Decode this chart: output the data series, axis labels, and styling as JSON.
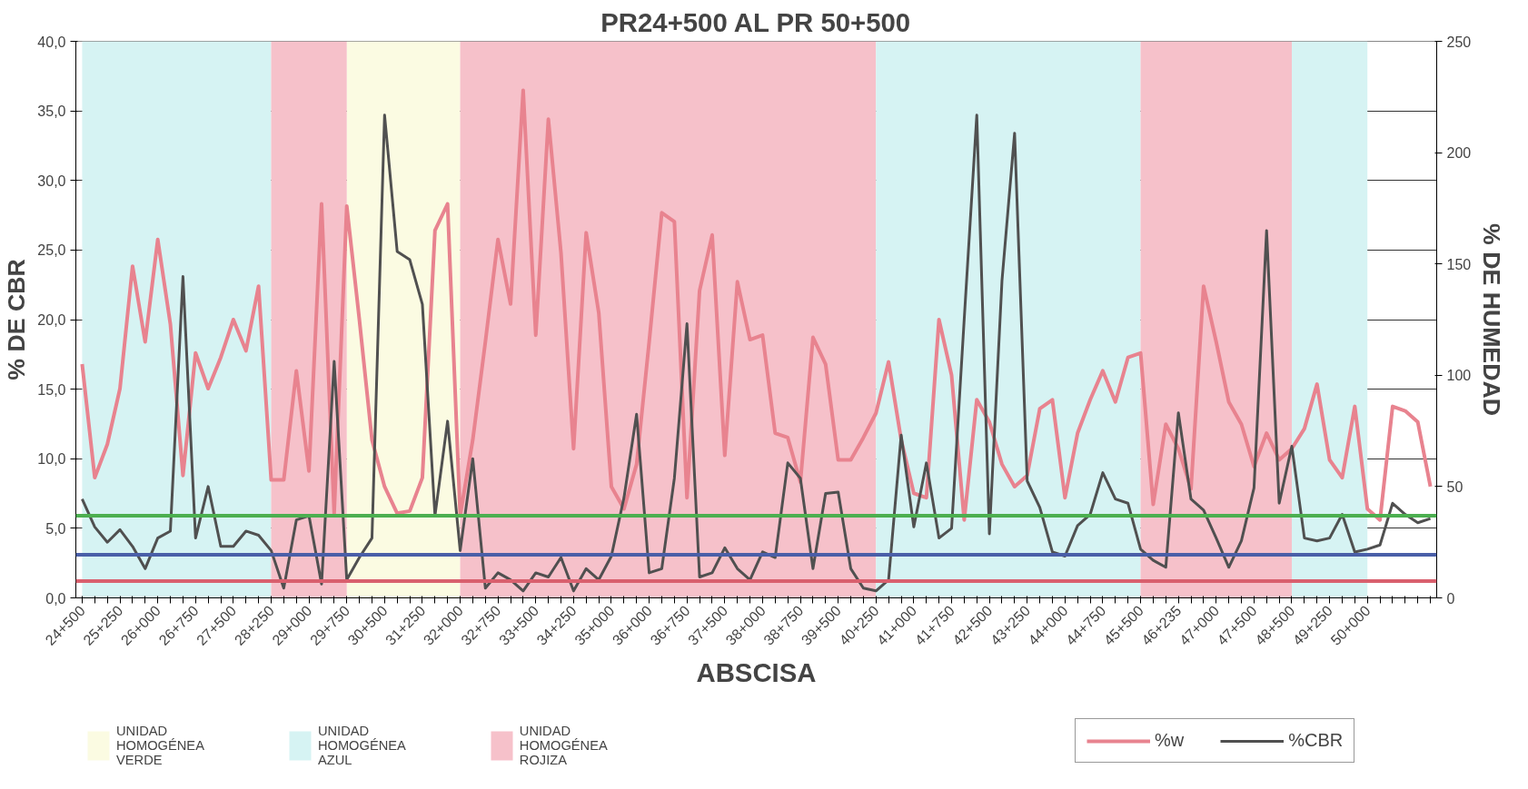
{
  "chart_data": {
    "type": "line",
    "title": "PR24+500 AL PR 50+500",
    "xlabel": "ABSCISA",
    "ylabel": "% DE CBR",
    "y2label": "% DE HUMEDAD",
    "categories": [
      "24+500",
      null,
      null,
      "25+250",
      null,
      null,
      "26+000",
      null,
      null,
      "26+750",
      null,
      null,
      "27+500",
      null,
      null,
      "28+250",
      null,
      null,
      "29+000",
      null,
      null,
      "29+750",
      null,
      null,
      "30+500",
      null,
      null,
      "31+250",
      null,
      null,
      "32+000",
      null,
      null,
      "32+750",
      null,
      null,
      "33+500",
      null,
      null,
      "34+250",
      null,
      null,
      "35+000",
      null,
      null,
      "36+000",
      null,
      null,
      "36+750",
      null,
      null,
      "37+500",
      null,
      null,
      "38+000",
      null,
      null,
      "38+750",
      null,
      null,
      "39+500",
      null,
      null,
      "40+250",
      null,
      null,
      "41+000",
      null,
      null,
      "41+750",
      null,
      null,
      "42+500",
      null,
      null,
      "43+250",
      null,
      null,
      "44+000",
      null,
      null,
      "44+750",
      null,
      null,
      "45+500",
      null,
      null,
      "46+235",
      null,
      null,
      "47+000",
      null,
      null,
      "47+500",
      null,
      null,
      "48+500",
      null,
      null,
      "49+250",
      null,
      null,
      "50+000",
      null,
      null,
      null,
      null,
      null
    ],
    "series": [
      {
        "name": "%w",
        "color": "#e8838f",
        "axis": "y2",
        "values": [
          105,
          54,
          69,
          94,
          149,
          115,
          161,
          123,
          55,
          110,
          94,
          108,
          125,
          111,
          140,
          53,
          53,
          102,
          57,
          177,
          38,
          176,
          125,
          71,
          50,
          38,
          39,
          54,
          165,
          177,
          37,
          71,
          115,
          161,
          132,
          228,
          118,
          215,
          155,
          67,
          164,
          128,
          50,
          40,
          60,
          115,
          173,
          169,
          45,
          138,
          163,
          64,
          142,
          116,
          118,
          74,
          72,
          52,
          117,
          105,
          62,
          62,
          72,
          83,
          106,
          71,
          47,
          45,
          125,
          100,
          35,
          89,
          79,
          60,
          50,
          55,
          85,
          89,
          45,
          74,
          89,
          102,
          88,
          108,
          110,
          42,
          78,
          67,
          49,
          140,
          115,
          88,
          78,
          59,
          74,
          62,
          67,
          76,
          96,
          62,
          54,
          86,
          40,
          35,
          86,
          84,
          79,
          50
        ]
      },
      {
        "name": "%CBR",
        "color": "#505050",
        "values": [
          7.1,
          5.1,
          4.0,
          4.9,
          3.7,
          2.1,
          4.3,
          4.8,
          23.1,
          4.3,
          8.0,
          3.7,
          3.7,
          4.8,
          4.5,
          3.4,
          0.7,
          5.6,
          5.9,
          1.0,
          17.0,
          1.3,
          2.9,
          4.3,
          34.7,
          24.9,
          24.3,
          21.1,
          5.9,
          12.7,
          3.4,
          10.0,
          0.7,
          1.8,
          1.3,
          0.5,
          1.8,
          1.5,
          2.9,
          0.5,
          2.1,
          1.3,
          3.0,
          7.2,
          13.2,
          1.8,
          2.1,
          8.6,
          19.7,
          1.5,
          1.8,
          3.6,
          2.1,
          1.3,
          3.3,
          2.9,
          9.7,
          8.6,
          2.1,
          7.5,
          7.6,
          2.1,
          0.7,
          0.5,
          1.3,
          11.7,
          5.1,
          9.7,
          4.3,
          5.0,
          20.0,
          34.7,
          4.6,
          22.8,
          33.4,
          8.4,
          6.5,
          3.3,
          3.0,
          5.2,
          6.0,
          9.0,
          7.1,
          6.8,
          3.5,
          2.7,
          2.2,
          13.3,
          7.1,
          6.3,
          4.3,
          2.2,
          4.1,
          7.9,
          26.4,
          6.8,
          10.9,
          4.3,
          4.1,
          4.3,
          6.0,
          3.3,
          3.5,
          3.8,
          6.8,
          6.0,
          5.4,
          5.7
        ]
      }
    ],
    "ylim": [
      0,
      40
    ],
    "yticks": [
      {
        "value": 0,
        "label": "0,0"
      },
      {
        "value": 5,
        "label": "5,0"
      },
      {
        "value": 10,
        "label": "10,0"
      },
      {
        "value": 15,
        "label": "15,0"
      },
      {
        "value": 20,
        "label": "20,0"
      },
      {
        "value": 25,
        "label": "25,0"
      },
      {
        "value": 30,
        "label": "30,0"
      },
      {
        "value": 35,
        "label": "35,0"
      },
      {
        "value": 40,
        "label": "40,0"
      }
    ],
    "y2lim": [
      0,
      250
    ],
    "y2ticks": [
      0,
      50,
      100,
      150,
      200,
      250
    ],
    "ref_lines": [
      {
        "axis": "y",
        "value": 5.9,
        "color": "#4caf50"
      },
      {
        "axis": "y",
        "value": 3.1,
        "color": "#4a5fa8"
      },
      {
        "axis": "y",
        "value": 1.2,
        "color": "#d9606e"
      }
    ],
    "bands": [
      {
        "axis": "x",
        "from": "29+750",
        "to": "32+000",
        "color": "#fbfbe2",
        "label": "UNIDAD HOMOGÉNEA VERDE"
      },
      {
        "axis": "x",
        "from": "24+500",
        "to": "28+250",
        "color": "#d6f3f3",
        "label": "UNIDAD HOMOGÉNEA AZUL"
      },
      {
        "axis": "x",
        "from": "28+250",
        "to": "29+750",
        "color": "#f6c1ca",
        "label": "UNIDAD HOMOGÉNEA ROJIZA"
      },
      {
        "axis": "x",
        "from": "32+000",
        "to": "40+250",
        "color": "#f6c1ca"
      },
      {
        "axis": "x",
        "from": "40+250",
        "to": "45+500",
        "color": "#d6f3f3"
      },
      {
        "axis": "x",
        "from": "45+500",
        "to": "48+500",
        "color": "#f6c1ca"
      },
      {
        "axis": "x",
        "from": "48+500",
        "to": "50+000",
        "color": "#d6f3f3"
      }
    ],
    "grid": "y",
    "legend": "bottom",
    "marker": "none",
    "line_style": "solid"
  }
}
